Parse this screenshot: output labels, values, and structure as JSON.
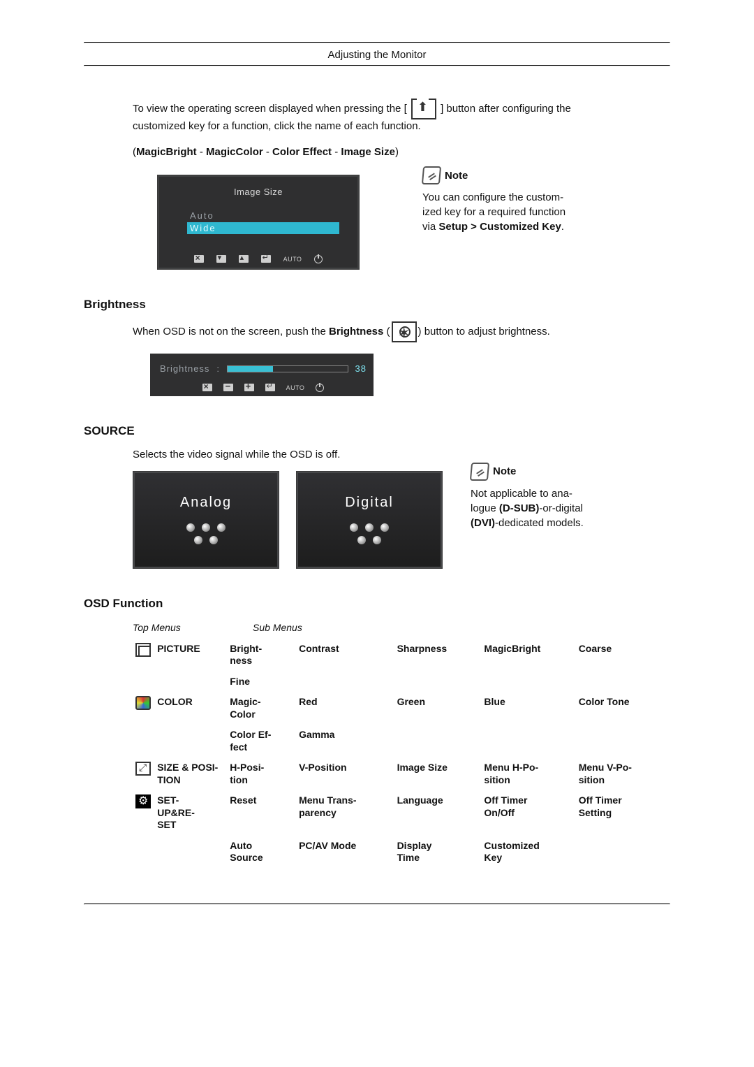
{
  "header": {
    "center_title": "Adjusting the Monitor"
  },
  "intro": {
    "line1_a": "To view the operating screen displayed when pressing the [",
    "line1_b": "] button after configuring the",
    "line2": "customized key for a function, click the name of each function."
  },
  "features": {
    "open": "(",
    "items": [
      "MagicBright",
      "MagicColor",
      "Color Effect",
      "Image Size"
    ],
    "sep": " - ",
    "close": ")"
  },
  "osd1": {
    "title": "Image Size",
    "options": [
      "Auto",
      "Wide"
    ],
    "selected_index": 1,
    "auto_label_small": "AUTO",
    "bg": "#2f2f30",
    "highlight": "#2fb8d0",
    "text_muted": "#9aa0a6"
  },
  "note1": {
    "heading": "Note",
    "body_a": "You can configure the custom-",
    "body_b": "ized key for a required function",
    "body_c_plain": "via ",
    "body_c_bold": "Setup > Customized Key",
    "body_c_end": "."
  },
  "brightness": {
    "heading": "Brightness",
    "line_a": "When OSD is not on the screen, push the ",
    "line_bold": "Brightness",
    "line_open": " (",
    "line_close": ") button to adjust brightness.",
    "panel": {
      "label": "Brightness",
      "sep": ":",
      "value": 38,
      "fill_pct": 38,
      "fill_color": "#39c0d4",
      "bg": "#2f2f30",
      "auto_label_small": "AUTO"
    }
  },
  "source": {
    "heading": "SOURCE",
    "desc": "Selects the video signal while the OSD is off.",
    "panels": [
      {
        "label": "Analog"
      },
      {
        "label": "Digital"
      }
    ],
    "note": {
      "heading": "Note",
      "l1": "Not applicable to ana-",
      "l2_a": "logue ",
      "l2_bold": "(D-SUB)",
      "l2_b": "-or-digital",
      "l3_bold": "(DVI)",
      "l3_b": "-dedicated models."
    }
  },
  "osd_func": {
    "heading": "OSD Function",
    "col_top": "Top Menus",
    "col_sub": "Sub Menus",
    "rows": [
      {
        "icon": "pic",
        "top": "PICTURE",
        "subs": [
          [
            "Bright-\nness",
            "Contrast",
            "Sharpness",
            "MagicBright",
            "Coarse"
          ],
          [
            "Fine",
            "",
            "",
            "",
            ""
          ]
        ]
      },
      {
        "icon": "color",
        "top": "COLOR",
        "subs": [
          [
            "Magic-\nColor",
            "Red",
            "Green",
            "Blue",
            "Color Tone"
          ],
          [
            "Color Ef-\nfect",
            "Gamma",
            "",
            "",
            ""
          ]
        ]
      },
      {
        "icon": "size",
        "top": "SIZE & POSI-\nTION",
        "subs": [
          [
            "H-Posi-\ntion",
            "V-Position",
            "Image Size",
            "Menu H-Po-\nsition",
            "Menu V-Po-\nsition"
          ]
        ]
      },
      {
        "icon": "gear",
        "top": "SET-\nUP&RE-\nSET",
        "subs": [
          [
            "Reset",
            "Menu Trans-\nparency",
            "Language",
            "Off Timer\nOn/Off",
            "Off Timer\nSetting"
          ],
          [
            "Auto\nSource",
            "PC/AV Mode",
            "Display\nTime",
            "Customized\nKey",
            ""
          ]
        ]
      }
    ]
  }
}
